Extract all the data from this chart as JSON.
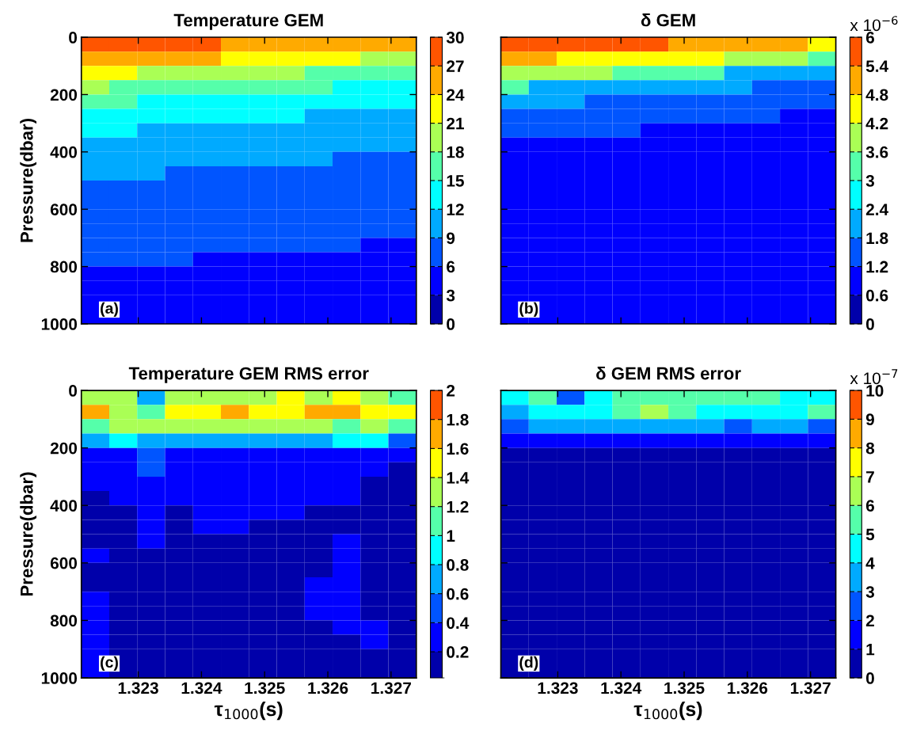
{
  "chart_data": [
    {
      "type": "heatmap",
      "title": "Temperature GEM",
      "ylabel": "Pressure(dbar)",
      "annotations": [
        "(a)"
      ],
      "xlim": [
        1.3221,
        1.3274
      ],
      "xticks": [
        1.323,
        1.324,
        1.325,
        1.326,
        1.327
      ],
      "ylim": [
        1000,
        0
      ],
      "yticks": [
        0,
        200,
        400,
        600,
        800,
        1000
      ],
      "tick_labels": "y",
      "clim": [
        0,
        30
      ],
      "cticks": [
        0,
        3,
        6,
        9,
        12,
        15,
        18,
        21,
        24,
        27,
        30
      ],
      "cells": [
        [
          28.5,
          28.5,
          28.5,
          28.5,
          28.5,
          25.5,
          25.5,
          25.5,
          25.5,
          25.5,
          25.5,
          25.5
        ],
        [
          25.5,
          25.5,
          25.5,
          25.5,
          25.5,
          22.5,
          22.5,
          22.5,
          22.5,
          22.5,
          19.5,
          19.5
        ],
        [
          22.5,
          22.5,
          19.5,
          19.5,
          19.5,
          19.5,
          19.5,
          19.5,
          16.5,
          16.5,
          16.5,
          16.5
        ],
        [
          19.5,
          16.5,
          16.5,
          16.5,
          16.5,
          16.5,
          16.5,
          16.5,
          16.5,
          13.5,
          13.5,
          13.5
        ],
        [
          16.5,
          16.5,
          13.5,
          13.5,
          13.5,
          13.5,
          13.5,
          13.5,
          13.5,
          13.5,
          13.5,
          13.5
        ],
        [
          13.5,
          13.5,
          13.5,
          13.5,
          13.5,
          13.5,
          13.5,
          13.5,
          10.5,
          10.5,
          10.5,
          10.5
        ],
        [
          13.5,
          13.5,
          10.5,
          10.5,
          10.5,
          10.5,
          10.5,
          10.5,
          10.5,
          10.5,
          10.5,
          10.5
        ],
        [
          10.5,
          10.5,
          10.5,
          10.5,
          10.5,
          10.5,
          10.5,
          10.5,
          10.5,
          10.5,
          10.5,
          10.5
        ],
        [
          10.5,
          10.5,
          10.5,
          10.5,
          10.5,
          10.5,
          10.5,
          10.5,
          10.5,
          7.5,
          7.5,
          7.5
        ],
        [
          10.5,
          10.5,
          10.5,
          7.5,
          7.5,
          7.5,
          7.5,
          7.5,
          7.5,
          7.5,
          7.5,
          7.5
        ],
        [
          7.5,
          7.5,
          7.5,
          7.5,
          7.5,
          7.5,
          7.5,
          7.5,
          7.5,
          7.5,
          7.5,
          7.5
        ],
        [
          7.5,
          7.5,
          7.5,
          7.5,
          7.5,
          7.5,
          7.5,
          7.5,
          7.5,
          7.5,
          7.5,
          7.5
        ],
        [
          7.5,
          7.5,
          7.5,
          7.5,
          7.5,
          7.5,
          7.5,
          7.5,
          7.5,
          7.5,
          7.5,
          7.5
        ],
        [
          7.5,
          7.5,
          7.5,
          7.5,
          7.5,
          7.5,
          7.5,
          7.5,
          7.5,
          7.5,
          7.5,
          7.5
        ],
        [
          7.5,
          7.5,
          7.5,
          7.5,
          7.5,
          7.5,
          7.5,
          7.5,
          7.5,
          7.5,
          4.5,
          4.5
        ],
        [
          7.5,
          7.5,
          7.5,
          7.5,
          4.5,
          4.5,
          4.5,
          4.5,
          4.5,
          4.5,
          4.5,
          4.5
        ],
        [
          4.5,
          4.5,
          4.5,
          4.5,
          4.5,
          4.5,
          4.5,
          4.5,
          4.5,
          4.5,
          4.5,
          4.5
        ],
        [
          4.5,
          4.5,
          4.5,
          4.5,
          4.5,
          4.5,
          4.5,
          4.5,
          4.5,
          4.5,
          4.5,
          4.5
        ],
        [
          4.5,
          4.5,
          4.5,
          4.5,
          4.5,
          4.5,
          4.5,
          4.5,
          4.5,
          4.5,
          4.5,
          4.5
        ],
        [
          4.5,
          4.5,
          4.5,
          4.5,
          4.5,
          4.5,
          4.5,
          4.5,
          4.5,
          4.5,
          4.5,
          4.5
        ]
      ]
    },
    {
      "type": "heatmap",
      "title": "δ GEM",
      "annotations": [
        "(b)"
      ],
      "clabel": "x 10$^{−6}$",
      "xlim": [
        1.3221,
        1.3274
      ],
      "xticks": [
        1.323,
        1.324,
        1.325,
        1.326,
        1.327
      ],
      "ylim": [
        1000,
        0
      ],
      "yticks": [
        0,
        200,
        400,
        600,
        800,
        1000
      ],
      "tick_labels": false,
      "clim": [
        0,
        6
      ],
      "cticks": [
        0,
        0.6,
        1.2,
        1.8,
        2.4,
        3,
        3.6,
        4.2,
        4.8,
        5.4,
        6
      ],
      "cells": [
        [
          5.7,
          5.7,
          5.7,
          5.7,
          5.7,
          5.7,
          5.1,
          5.1,
          5.1,
          5.1,
          5.1,
          4.5
        ],
        [
          5.1,
          5.1,
          4.5,
          4.5,
          4.5,
          4.5,
          4.5,
          4.5,
          3.9,
          3.9,
          3.9,
          3.3
        ],
        [
          3.9,
          3.9,
          3.9,
          3.9,
          3.3,
          3.3,
          3.3,
          3.3,
          2.1,
          2.1,
          2.1,
          2.1
        ],
        [
          3.3,
          2.1,
          2.1,
          2.1,
          2.1,
          2.1,
          2.1,
          2.1,
          2.1,
          1.5,
          1.5,
          1.5
        ],
        [
          2.1,
          2.1,
          2.1,
          1.5,
          1.5,
          1.5,
          1.5,
          1.5,
          1.5,
          1.5,
          1.5,
          1.5
        ],
        [
          1.5,
          1.5,
          1.5,
          1.5,
          1.5,
          1.5,
          1.5,
          1.5,
          1.5,
          1.5,
          0.9,
          0.9
        ],
        [
          1.5,
          1.5,
          1.5,
          1.5,
          1.5,
          0.9,
          0.9,
          0.9,
          0.9,
          0.9,
          0.9,
          0.9
        ],
        [
          0.9,
          0.9,
          0.9,
          0.9,
          0.9,
          0.9,
          0.9,
          0.9,
          0.9,
          0.9,
          0.9,
          0.9
        ],
        [
          0.9,
          0.9,
          0.9,
          0.9,
          0.9,
          0.9,
          0.9,
          0.9,
          0.9,
          0.9,
          0.9,
          0.9
        ],
        [
          0.9,
          0.9,
          0.9,
          0.9,
          0.9,
          0.9,
          0.9,
          0.9,
          0.9,
          0.9,
          0.9,
          0.9
        ],
        [
          0.9,
          0.9,
          0.9,
          0.9,
          0.9,
          0.9,
          0.9,
          0.9,
          0.9,
          0.9,
          0.9,
          0.9
        ],
        [
          0.9,
          0.9,
          0.9,
          0.9,
          0.9,
          0.9,
          0.9,
          0.9,
          0.9,
          0.9,
          0.9,
          0.9
        ],
        [
          0.9,
          0.9,
          0.9,
          0.9,
          0.9,
          0.9,
          0.9,
          0.9,
          0.9,
          0.9,
          0.9,
          0.9
        ],
        [
          0.9,
          0.9,
          0.9,
          0.9,
          0.9,
          0.9,
          0.9,
          0.9,
          0.9,
          0.9,
          0.9,
          0.9
        ],
        [
          0.9,
          0.9,
          0.9,
          0.9,
          0.9,
          0.9,
          0.9,
          0.9,
          0.9,
          0.9,
          0.9,
          0.9
        ],
        [
          0.9,
          0.9,
          0.9,
          0.9,
          0.9,
          0.9,
          0.9,
          0.9,
          0.9,
          0.9,
          0.9,
          0.9
        ],
        [
          0.9,
          0.9,
          0.9,
          0.9,
          0.9,
          0.9,
          0.9,
          0.9,
          0.9,
          0.9,
          0.9,
          0.9
        ],
        [
          0.9,
          0.9,
          0.9,
          0.9,
          0.9,
          0.9,
          0.9,
          0.9,
          0.9,
          0.9,
          0.9,
          0.9
        ],
        [
          0.9,
          0.9,
          0.9,
          0.9,
          0.9,
          0.9,
          0.9,
          0.9,
          0.9,
          0.9,
          0.9,
          0.9
        ],
        [
          0.9,
          0.9,
          0.9,
          0.9,
          0.9,
          0.9,
          0.9,
          0.9,
          0.9,
          0.9,
          0.9,
          0.9
        ]
      ]
    },
    {
      "type": "heatmap",
      "title": "Temperature GEM RMS error",
      "ylabel": "Pressure(dbar)",
      "xlabel": "τ$_{1000}$(s)",
      "annotations": [
        "(c)"
      ],
      "xlim": [
        1.3221,
        1.3274
      ],
      "xticks": [
        1.323,
        1.324,
        1.325,
        1.326,
        1.327
      ],
      "ylim": [
        1000,
        0
      ],
      "yticks": [
        0,
        200,
        400,
        600,
        800,
        1000
      ],
      "clim": [
        0.02,
        2
      ],
      "cticks": [
        0.2,
        0.4,
        0.6,
        0.8,
        1,
        1.2,
        1.4,
        1.6,
        1.8,
        2
      ],
      "cells": [
        [
          1.3,
          1.3,
          0.7,
          1.3,
          1.3,
          1.3,
          1.3,
          1.5,
          1.3,
          1.5,
          1.3,
          1.1
        ],
        [
          1.7,
          1.3,
          1.1,
          1.5,
          1.5,
          1.7,
          1.5,
          1.5,
          1.7,
          1.7,
          1.5,
          1.5
        ],
        [
          1.1,
          1.3,
          1.3,
          1.3,
          1.3,
          1.3,
          1.3,
          1.3,
          1.3,
          1.1,
          1.3,
          1.1
        ],
        [
          0.7,
          0.9,
          0.7,
          0.7,
          0.7,
          0.7,
          0.7,
          0.7,
          0.7,
          0.9,
          0.9,
          0.5
        ],
        [
          0.3,
          0.3,
          0.5,
          0.3,
          0.3,
          0.3,
          0.3,
          0.3,
          0.3,
          0.3,
          0.3,
          0.3
        ],
        [
          0.3,
          0.3,
          0.5,
          0.3,
          0.3,
          0.3,
          0.3,
          0.3,
          0.3,
          0.3,
          0.3,
          0.1
        ],
        [
          0.3,
          0.3,
          0.3,
          0.3,
          0.3,
          0.3,
          0.3,
          0.3,
          0.3,
          0.3,
          0.1,
          0.1
        ],
        [
          0.1,
          0.3,
          0.3,
          0.3,
          0.3,
          0.3,
          0.3,
          0.3,
          0.3,
          0.3,
          0.1,
          0.1
        ],
        [
          0.1,
          0.1,
          0.3,
          0.1,
          0.3,
          0.3,
          0.3,
          0.3,
          0.1,
          0.1,
          0.1,
          0.1
        ],
        [
          0.1,
          0.1,
          0.3,
          0.1,
          0.3,
          0.3,
          0.1,
          0.1,
          0.1,
          0.1,
          0.1,
          0.1
        ],
        [
          0.1,
          0.1,
          0.3,
          0.1,
          0.1,
          0.1,
          0.1,
          0.1,
          0.1,
          0.3,
          0.1,
          0.1
        ],
        [
          0.3,
          0.1,
          0.1,
          0.1,
          0.1,
          0.1,
          0.1,
          0.1,
          0.1,
          0.3,
          0.1,
          0.1
        ],
        [
          0.1,
          0.1,
          0.1,
          0.1,
          0.1,
          0.1,
          0.1,
          0.1,
          0.1,
          0.3,
          0.1,
          0.1
        ],
        [
          0.1,
          0.1,
          0.1,
          0.1,
          0.1,
          0.1,
          0.1,
          0.1,
          0.3,
          0.3,
          0.1,
          0.1
        ],
        [
          0.3,
          0.1,
          0.1,
          0.1,
          0.1,
          0.1,
          0.1,
          0.1,
          0.3,
          0.3,
          0.1,
          0.1
        ],
        [
          0.3,
          0.1,
          0.1,
          0.1,
          0.1,
          0.1,
          0.1,
          0.1,
          0.3,
          0.3,
          0.1,
          0.1
        ],
        [
          0.3,
          0.1,
          0.1,
          0.1,
          0.1,
          0.1,
          0.1,
          0.1,
          0.1,
          0.3,
          0.3,
          0.1
        ],
        [
          0.3,
          0.1,
          0.1,
          0.1,
          0.1,
          0.1,
          0.1,
          0.1,
          0.1,
          0.1,
          0.3,
          0.1
        ],
        [
          0.3,
          0.1,
          0.1,
          0.1,
          0.1,
          0.1,
          0.1,
          0.1,
          0.1,
          0.1,
          0.1,
          0.1
        ],
        [
          0.3,
          0.1,
          0.1,
          0.1,
          0.1,
          0.1,
          0.1,
          0.1,
          0.1,
          0.1,
          0.1,
          0.1
        ]
      ]
    },
    {
      "type": "heatmap",
      "title": "δ GEM RMS error",
      "xlabel": "τ$_{1000}$(s)",
      "annotations": [
        "(d)"
      ],
      "clabel": "x 10$^{−7}$",
      "xlim": [
        1.3221,
        1.3274
      ],
      "xticks": [
        1.323,
        1.324,
        1.325,
        1.326,
        1.327
      ],
      "ylim": [
        1000,
        0
      ],
      "yticks": [
        0,
        200,
        400,
        600,
        800,
        1000
      ],
      "tick_labels": "x",
      "clim": [
        0,
        10
      ],
      "cticks": [
        0,
        1,
        2,
        3,
        4,
        5,
        6,
        7,
        8,
        9,
        10
      ],
      "cells": [
        [
          4.5,
          5.5,
          2.5,
          4.5,
          5.5,
          5.5,
          5.5,
          5.5,
          5.5,
          5.5,
          4.5,
          4.5
        ],
        [
          3.5,
          4.5,
          4.5,
          4.5,
          5.5,
          6.5,
          5.5,
          4.5,
          4.5,
          4.5,
          4.5,
          5.5
        ],
        [
          2.5,
          3.5,
          3.5,
          3.5,
          3.5,
          3.5,
          3.5,
          3.5,
          2.5,
          3.5,
          3.5,
          2.5
        ],
        [
          1.5,
          1.5,
          1.5,
          1.5,
          1.5,
          1.5,
          1.5,
          1.5,
          1.5,
          1.5,
          1.5,
          1.5
        ],
        [
          0.5,
          0.5,
          0.5,
          0.5,
          0.5,
          0.5,
          0.5,
          0.5,
          0.5,
          0.5,
          0.5,
          0.5
        ],
        [
          0.5,
          0.5,
          0.5,
          0.5,
          0.5,
          0.5,
          0.5,
          0.5,
          0.5,
          0.5,
          0.5,
          0.5
        ],
        [
          0.5,
          0.5,
          0.5,
          0.5,
          0.5,
          0.5,
          0.5,
          0.5,
          0.5,
          0.5,
          0.5,
          0.5
        ],
        [
          0.5,
          0.5,
          0.5,
          0.5,
          0.5,
          0.5,
          0.5,
          0.5,
          0.5,
          0.5,
          0.5,
          0.5
        ],
        [
          0.5,
          0.5,
          0.5,
          0.5,
          0.5,
          0.5,
          0.5,
          0.5,
          0.5,
          0.5,
          0.5,
          0.5
        ],
        [
          0.5,
          0.5,
          0.5,
          0.5,
          0.5,
          0.5,
          0.5,
          0.5,
          0.5,
          0.5,
          0.5,
          0.5
        ],
        [
          0.5,
          0.5,
          0.5,
          0.5,
          0.5,
          0.5,
          0.5,
          0.5,
          0.5,
          0.5,
          0.5,
          0.5
        ],
        [
          0.5,
          0.5,
          0.5,
          0.5,
          0.5,
          0.5,
          0.5,
          0.5,
          0.5,
          0.5,
          0.5,
          0.5
        ],
        [
          0.5,
          0.5,
          0.5,
          0.5,
          0.5,
          0.5,
          0.5,
          0.5,
          0.5,
          0.5,
          0.5,
          0.5
        ],
        [
          0.5,
          0.5,
          0.5,
          0.5,
          0.5,
          0.5,
          0.5,
          0.5,
          0.5,
          0.5,
          0.5,
          0.5
        ],
        [
          0.5,
          0.5,
          0.5,
          0.5,
          0.5,
          0.5,
          0.5,
          0.5,
          0.5,
          0.5,
          0.5,
          0.5
        ],
        [
          0.5,
          0.5,
          0.5,
          0.5,
          0.5,
          0.5,
          0.5,
          0.5,
          0.5,
          0.5,
          0.5,
          0.5
        ],
        [
          0.5,
          0.5,
          0.5,
          0.5,
          0.5,
          0.5,
          0.5,
          0.5,
          0.5,
          0.5,
          0.5,
          0.5
        ],
        [
          0.5,
          0.5,
          0.5,
          0.5,
          0.5,
          0.5,
          0.5,
          0.5,
          0.5,
          0.5,
          0.5,
          0.5
        ],
        [
          0.5,
          0.5,
          0.5,
          0.5,
          0.5,
          0.5,
          0.5,
          0.5,
          0.5,
          0.5,
          0.5,
          0.5
        ],
        [
          0.5,
          0.5,
          0.5,
          0.5,
          0.5,
          0.5,
          0.5,
          0.5,
          0.5,
          0.5,
          0.5,
          0.5
        ]
      ]
    }
  ]
}
